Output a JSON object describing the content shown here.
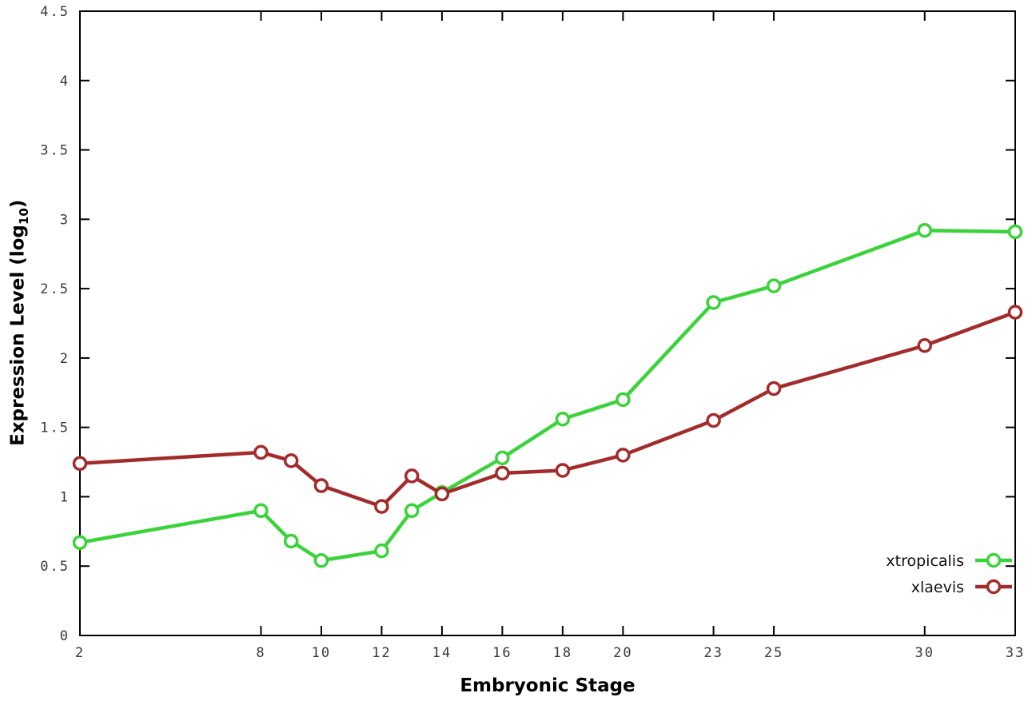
{
  "chart_data": {
    "type": "line",
    "title": "",
    "xlabel": "Embryonic Stage",
    "ylabel_parts": {
      "pre": "Expression Level (log",
      "sub": "10",
      "post": ")"
    },
    "x": [
      2,
      8,
      9,
      10,
      12,
      13,
      14,
      16,
      18,
      20,
      23,
      25,
      30,
      33
    ],
    "xlim": [
      2,
      33
    ],
    "ylim": [
      0,
      4.5
    ],
    "xticks": [
      2,
      8,
      10,
      12,
      14,
      16,
      18,
      20,
      23,
      25,
      30,
      33
    ],
    "xtick_labels": [
      "2",
      "8",
      "10",
      "12",
      "14",
      "16",
      "18",
      "20",
      "23",
      "25",
      "30",
      "33"
    ],
    "yticks": [
      0,
      0.5,
      1,
      1.5,
      2,
      2.5,
      3,
      3.5,
      4,
      4.5
    ],
    "ytick_labels": [
      "0",
      "0.5",
      "1",
      "1.5",
      "2",
      "2.5",
      "3",
      "3.5",
      "4",
      "4.5"
    ],
    "grid": false,
    "legend_position": "bottom-right",
    "marker": "open-circle",
    "border_color": "#000000",
    "background_color": "#ffffff",
    "series": [
      {
        "name": "xtropicalis",
        "color": "#3bd23b",
        "values": [
          0.67,
          0.9,
          0.68,
          0.54,
          0.61,
          0.9,
          1.03,
          1.28,
          1.56,
          1.7,
          2.4,
          2.52,
          2.92,
          2.91
        ]
      },
      {
        "name": "xlaevis",
        "color": "#a22c2c",
        "values": [
          1.24,
          1.32,
          1.26,
          1.08,
          0.93,
          1.15,
          1.02,
          1.17,
          1.19,
          1.3,
          1.55,
          1.78,
          2.09,
          2.33
        ]
      }
    ]
  }
}
